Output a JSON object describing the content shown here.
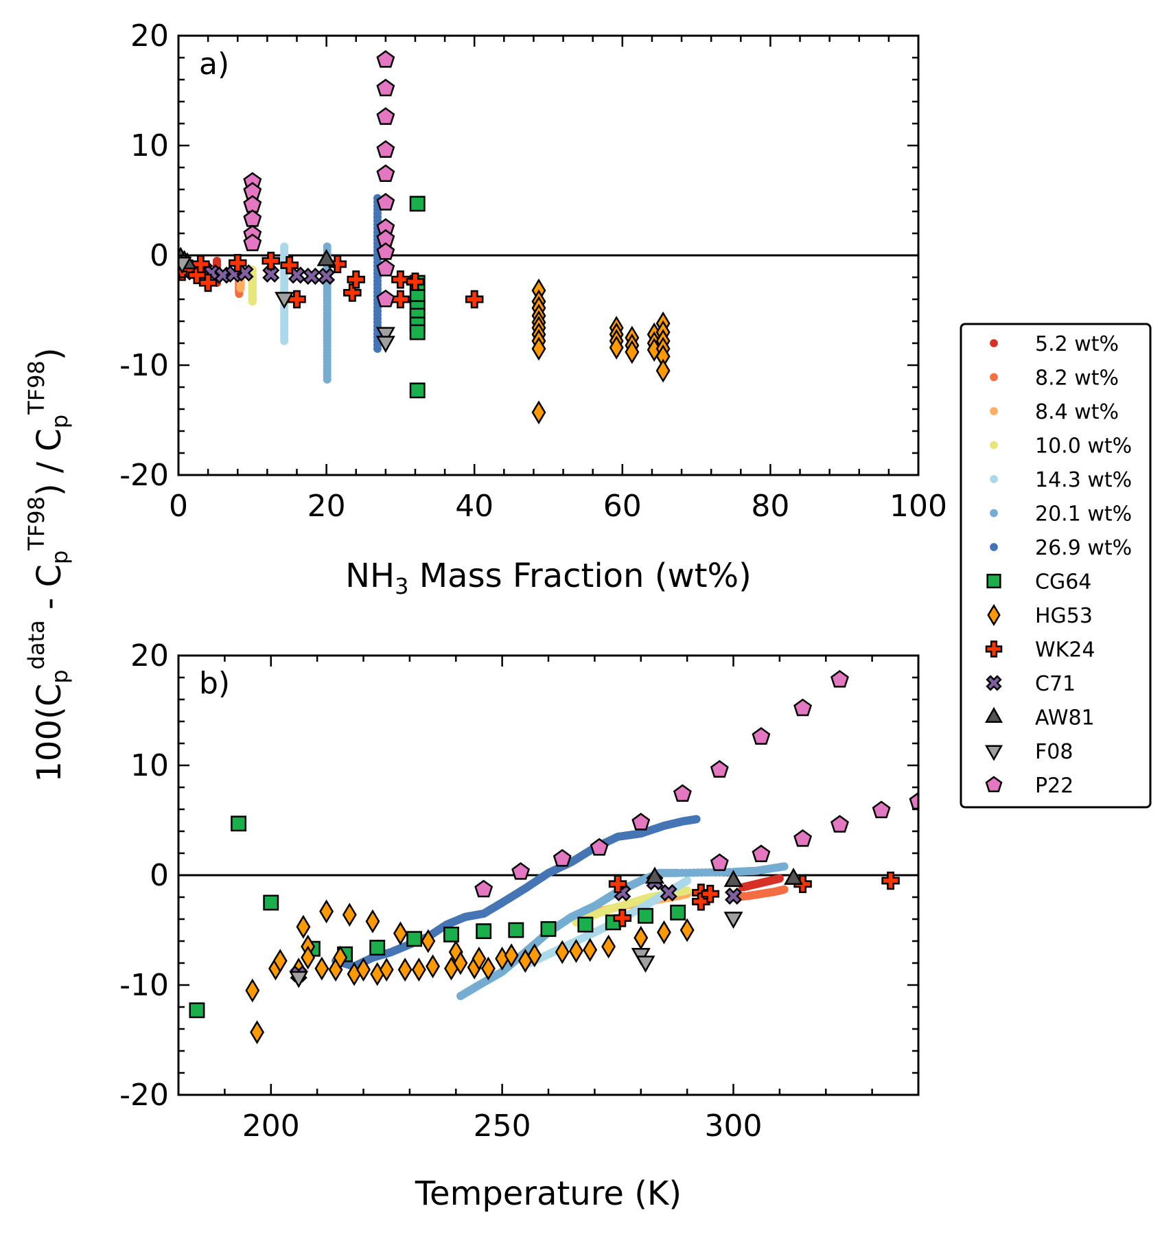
{
  "chart_data": {
    "type": "scatter",
    "ylabel": {
      "prefix": "100(C",
      "sub1": "p",
      "sup1": "data",
      "mid": " - C",
      "sub2": "p",
      "sup2": "TF98",
      "mid2": ") / C",
      "sub3": "p",
      "sup3": "TF98",
      "suffix": ")"
    },
    "legend": {
      "placement": "right",
      "entries": [
        {
          "label": "5.2 wt%",
          "marker": "dot",
          "color": "#d73027"
        },
        {
          "label": "8.2 wt%",
          "marker": "dot",
          "color": "#f46d43"
        },
        {
          "label": "8.4 wt%",
          "marker": "dot",
          "color": "#fdae61"
        },
        {
          "label": "10.0 wt%",
          "marker": "dot",
          "color": "#e6e67a"
        },
        {
          "label": "14.3 wt%",
          "marker": "dot",
          "color": "#abd9e9"
        },
        {
          "label": "20.1 wt%",
          "marker": "dot",
          "color": "#74add1"
        },
        {
          "label": "26.9 wt%",
          "marker": "dot",
          "color": "#4575b4"
        },
        {
          "label": "CG64",
          "marker": "square",
          "color": "#1aaf4b"
        },
        {
          "label": "HG53",
          "marker": "diamond",
          "color": "#ff9900"
        },
        {
          "label": "WK24",
          "marker": "plus",
          "color": "#ff3300"
        },
        {
          "label": "C71",
          "marker": "x",
          "color": "#8060a0"
        },
        {
          "label": "AW81",
          "marker": "triangle-up",
          "color": "#555555"
        },
        {
          "label": "F08",
          "marker": "triangle-down",
          "color": "#a0a0a0"
        },
        {
          "label": "P22",
          "marker": "pentagon",
          "color": "#e377c2"
        }
      ]
    },
    "panels": [
      {
        "id": "a",
        "panel_label": "a)",
        "xlabel": {
          "pre": "NH",
          "sub": "3",
          "post": " Mass Fraction (wt%)"
        },
        "xlim": [
          0,
          100
        ],
        "ylim": [
          -20,
          20
        ],
        "xticks": [
          "0",
          "20",
          "40",
          "60",
          "80",
          "100"
        ],
        "yticks": [
          "20",
          "10",
          "0",
          "-10",
          "-20"
        ],
        "zero_line": true,
        "vlines": [
          {
            "series": "5.2 wt%",
            "x": 5.2,
            "y": [
              -2.5,
              -0.5
            ]
          },
          {
            "series": "8.2 wt%",
            "x": 8.2,
            "y": [
              -3.5,
              -1.0
            ]
          },
          {
            "series": "8.4 wt%",
            "x": 8.4,
            "y": [
              -3.0,
              -1.2
            ]
          },
          {
            "series": "10.0 wt%",
            "x": 10.0,
            "y": [
              -4.2,
              -1.3
            ]
          },
          {
            "series": "14.3 wt%",
            "x": 14.3,
            "y": [
              -7.8,
              0.8
            ]
          },
          {
            "series": "20.1 wt%",
            "x": 20.1,
            "y": [
              -11.3,
              0.8
            ]
          },
          {
            "series": "26.9 wt%",
            "x": 26.9,
            "y": [
              -8.5,
              5.2
            ]
          }
        ],
        "points": {
          "CG64": [
            [
              32.3,
              4.7
            ],
            [
              32.3,
              -2.5
            ],
            [
              32.3,
              -3.8
            ],
            [
              32.3,
              -4.8
            ],
            [
              32.3,
              -5.5
            ],
            [
              32.3,
              -6.3
            ],
            [
              32.3,
              -7.0
            ],
            [
              32.3,
              -12.3
            ]
          ],
          "HG53": [
            [
              48.7,
              -3.2
            ],
            [
              48.7,
              -4.2
            ],
            [
              48.7,
              -4.8
            ],
            [
              48.7,
              -5.5
            ],
            [
              48.7,
              -6.1
            ],
            [
              48.7,
              -6.6
            ],
            [
              48.7,
              -7.2
            ],
            [
              48.7,
              -7.8
            ],
            [
              48.7,
              -8.5
            ],
            [
              48.7,
              -14.3
            ],
            [
              59.2,
              -6.6
            ],
            [
              59.2,
              -7.2
            ],
            [
              59.2,
              -7.8
            ],
            [
              59.2,
              -8.4
            ],
            [
              61.3,
              -7.5
            ],
            [
              61.3,
              -8.2
            ],
            [
              61.3,
              -8.8
            ],
            [
              64.3,
              -7.2
            ],
            [
              64.3,
              -8.0
            ],
            [
              64.3,
              -8.6
            ],
            [
              65.5,
              -6.2
            ],
            [
              65.5,
              -7.0
            ],
            [
              65.5,
              -7.8
            ],
            [
              65.5,
              -8.5
            ],
            [
              65.5,
              -9.2
            ],
            [
              65.5,
              -10.5
            ]
          ],
          "WK24": [
            [
              0.5,
              -1.5
            ],
            [
              1.5,
              -1.2
            ],
            [
              2.5,
              -1.8
            ],
            [
              3.0,
              -0.8
            ],
            [
              4.0,
              -2.5
            ],
            [
              8.0,
              -0.7
            ],
            [
              12.5,
              -0.5
            ],
            [
              15.0,
              -0.9
            ],
            [
              16.0,
              -4.0
            ],
            [
              21.5,
              -0.8
            ],
            [
              23.5,
              -3.4
            ],
            [
              24.0,
              -2.2
            ],
            [
              30.0,
              -2.2
            ],
            [
              30.0,
              -4.0
            ],
            [
              32.0,
              -2.4
            ],
            [
              40.0,
              -4.0
            ]
          ],
          "C71": [
            [
              1.0,
              -1.0
            ],
            [
              2.0,
              -1.5
            ],
            [
              3.5,
              -1.3
            ],
            [
              4.5,
              -1.6
            ],
            [
              6.0,
              -1.8
            ],
            [
              7.5,
              -1.7
            ],
            [
              9.0,
              -1.6
            ],
            [
              12.5,
              -1.7
            ],
            [
              16.0,
              -1.8
            ],
            [
              18.0,
              -1.9
            ],
            [
              20.0,
              -1.9
            ]
          ],
          "AW81": [
            [
              0.3,
              -0.2
            ],
            [
              0.8,
              -0.5
            ],
            [
              1.2,
              -0.7
            ],
            [
              20.0,
              -0.4
            ]
          ],
          "F08": [
            [
              0.5,
              -0.7
            ],
            [
              14.3,
              -3.9
            ],
            [
              28.0,
              -7.1
            ],
            [
              28.0,
              -7.9
            ]
          ],
          "P22": [
            [
              10.0,
              6.7
            ],
            [
              10.0,
              5.8
            ],
            [
              10.0,
              4.6
            ],
            [
              10.0,
              3.3
            ],
            [
              10.0,
              1.9
            ],
            [
              10.0,
              1.1
            ],
            [
              28.0,
              17.8
            ],
            [
              28.0,
              15.2
            ],
            [
              28.0,
              12.6
            ],
            [
              28.0,
              9.6
            ],
            [
              28.0,
              7.4
            ],
            [
              28.0,
              4.8
            ],
            [
              28.0,
              2.5
            ],
            [
              28.0,
              1.5
            ],
            [
              28.0,
              0.3
            ],
            [
              28.0,
              -1.2
            ],
            [
              28.0,
              -4.0
            ]
          ]
        }
      },
      {
        "id": "b",
        "panel_label": "b)",
        "xlabel": {
          "pre": "Temperature (K)",
          "sub": "",
          "post": ""
        },
        "xlim": [
          180,
          340
        ],
        "ylim": [
          -20,
          20
        ],
        "xticks": [
          "200",
          "250",
          "300"
        ],
        "yticks": [
          "20",
          "10",
          "0",
          "-10",
          "-20"
        ],
        "zero_line": true,
        "curves": [
          {
            "series": "5.2 wt%",
            "x": [
              302,
              304,
              306,
              308,
              310
            ],
            "y": [
              -1.1,
              -0.9,
              -0.7,
              -0.5,
              -0.3
            ]
          },
          {
            "series": "8.2 wt%",
            "x": [
              300,
              303,
              306,
              309,
              311
            ],
            "y": [
              -2.0,
              -1.9,
              -1.7,
              -1.5,
              -1.3
            ]
          },
          {
            "series": "8.4 wt%",
            "x": [
              268,
              272,
              276,
              280,
              284,
              288,
              290
            ],
            "y": [
              -3.6,
              -3.2,
              -2.8,
              -2.5,
              -2.2,
              -1.9,
              -1.7
            ]
          },
          {
            "series": "10.0 wt%",
            "x": [
              266,
              270,
              274,
              278,
              282,
              286,
              290
            ],
            "y": [
              -4.3,
              -3.6,
              -3.0,
              -2.5,
              -2.0,
              -1.7,
              -1.4
            ]
          },
          {
            "series": "14.3 wt%",
            "x": [
              256,
              260,
              264,
              268,
              272,
              276,
              280,
              284,
              288,
              290
            ],
            "y": [
              -8.0,
              -7.2,
              -6.4,
              -5.6,
              -4.8,
              -3.9,
              -3.0,
              -2.0,
              -1.0,
              -0.5
            ]
          },
          {
            "series": "20.1 wt%",
            "x": [
              241,
              245,
              250,
              255,
              260,
              265,
              270,
              275,
              280,
              284,
              288,
              300,
              305,
              311
            ],
            "y": [
              -11.0,
              -10.0,
              -8.8,
              -7.0,
              -5.2,
              -3.8,
              -2.8,
              -1.5,
              -0.5,
              0.2,
              0.2,
              0.3,
              0.4,
              0.8
            ]
          },
          {
            "series": "26.9 wt%",
            "x": [
              214,
              218,
              222,
              226,
              230,
              234,
              238,
              242,
              246,
              250,
              255,
              260,
              265,
              270,
              275,
              280,
              285,
              289,
              292
            ],
            "y": [
              -7.8,
              -8.3,
              -7.5,
              -7.0,
              -6.3,
              -5.6,
              -4.5,
              -3.8,
              -3.5,
              -2.5,
              -1.2,
              0.2,
              1.2,
              2.5,
              3.5,
              3.8,
              4.5,
              4.9,
              5.1
            ]
          }
        ],
        "points": {
          "CG64": [
            [
              184,
              -12.3
            ],
            [
              193,
              4.7
            ],
            [
              200,
              -2.5
            ],
            [
              209,
              -6.7
            ],
            [
              216,
              -7.2
            ],
            [
              223,
              -6.6
            ],
            [
              231,
              -5.8
            ],
            [
              239,
              -5.4
            ],
            [
              246,
              -5.1
            ],
            [
              253,
              -5.0
            ],
            [
              260,
              -4.9
            ],
            [
              268,
              -4.5
            ],
            [
              274,
              -4.3
            ],
            [
              281,
              -3.7
            ],
            [
              288,
              -3.4
            ]
          ],
          "HG53": [
            [
              196,
              -10.5
            ],
            [
              197,
              -14.3
            ],
            [
              201,
              -8.5
            ],
            [
              202,
              -7.8
            ],
            [
              206,
              -8.6
            ],
            [
              207,
              -4.7
            ],
            [
              208,
              -6.5
            ],
            [
              208,
              -7.5
            ],
            [
              211,
              -8.5
            ],
            [
              212,
              -3.3
            ],
            [
              214,
              -8.6
            ],
            [
              215,
              -7.5
            ],
            [
              217,
              -3.6
            ],
            [
              218,
              -9.0
            ],
            [
              220,
              -8.6
            ],
            [
              222,
              -4.2
            ],
            [
              223,
              -9.0
            ],
            [
              225,
              -8.6
            ],
            [
              228,
              -5.3
            ],
            [
              229,
              -8.6
            ],
            [
              232,
              -8.6
            ],
            [
              234,
              -6.0
            ],
            [
              235,
              -8.3
            ],
            [
              239,
              -8.5
            ],
            [
              240,
              -7.0
            ],
            [
              241,
              -8.0
            ],
            [
              244,
              -8.4
            ],
            [
              245,
              -7.6
            ],
            [
              247,
              -8.5
            ],
            [
              250,
              -7.6
            ],
            [
              252,
              -7.3
            ],
            [
              255,
              -7.8
            ],
            [
              257,
              -7.3
            ],
            [
              263,
              -7.0
            ],
            [
              266,
              -6.9
            ],
            [
              269,
              -6.8
            ],
            [
              273,
              -6.5
            ],
            [
              280,
              -5.7
            ],
            [
              285,
              -5.2
            ],
            [
              290,
              -5.0
            ]
          ],
          "WK24": [
            [
              275,
              -0.8
            ],
            [
              276,
              -3.9
            ],
            [
              293,
              -1.6
            ],
            [
              293,
              -2.4
            ],
            [
              295,
              -1.7
            ],
            [
              315,
              -0.8
            ],
            [
              334,
              -0.5
            ]
          ],
          "C71": [
            [
              206,
              -9.0
            ],
            [
              276,
              -1.6
            ],
            [
              283,
              -0.6
            ],
            [
              286,
              -1.6
            ],
            [
              300,
              -1.9
            ]
          ],
          "AW81": [
            [
              283,
              -0.2
            ],
            [
              300,
              -0.5
            ],
            [
              313,
              -0.3
            ]
          ],
          "F08": [
            [
              206,
              -9.3
            ],
            [
              280,
              -7.2
            ],
            [
              281,
              -7.9
            ],
            [
              300,
              -3.9
            ]
          ],
          "P22": [
            [
              246,
              -1.3
            ],
            [
              254,
              0.3
            ],
            [
              263,
              1.5
            ],
            [
              271,
              2.5
            ],
            [
              280,
              4.8
            ],
            [
              289,
              7.4
            ],
            [
              297,
              9.6
            ],
            [
              306,
              12.6
            ],
            [
              315,
              15.2
            ],
            [
              323,
              17.8
            ],
            [
              297,
              1.1
            ],
            [
              306,
              1.9
            ],
            [
              315,
              3.3
            ],
            [
              323,
              4.6
            ],
            [
              332,
              5.9
            ],
            [
              340,
              6.7
            ]
          ]
        }
      }
    ]
  }
}
